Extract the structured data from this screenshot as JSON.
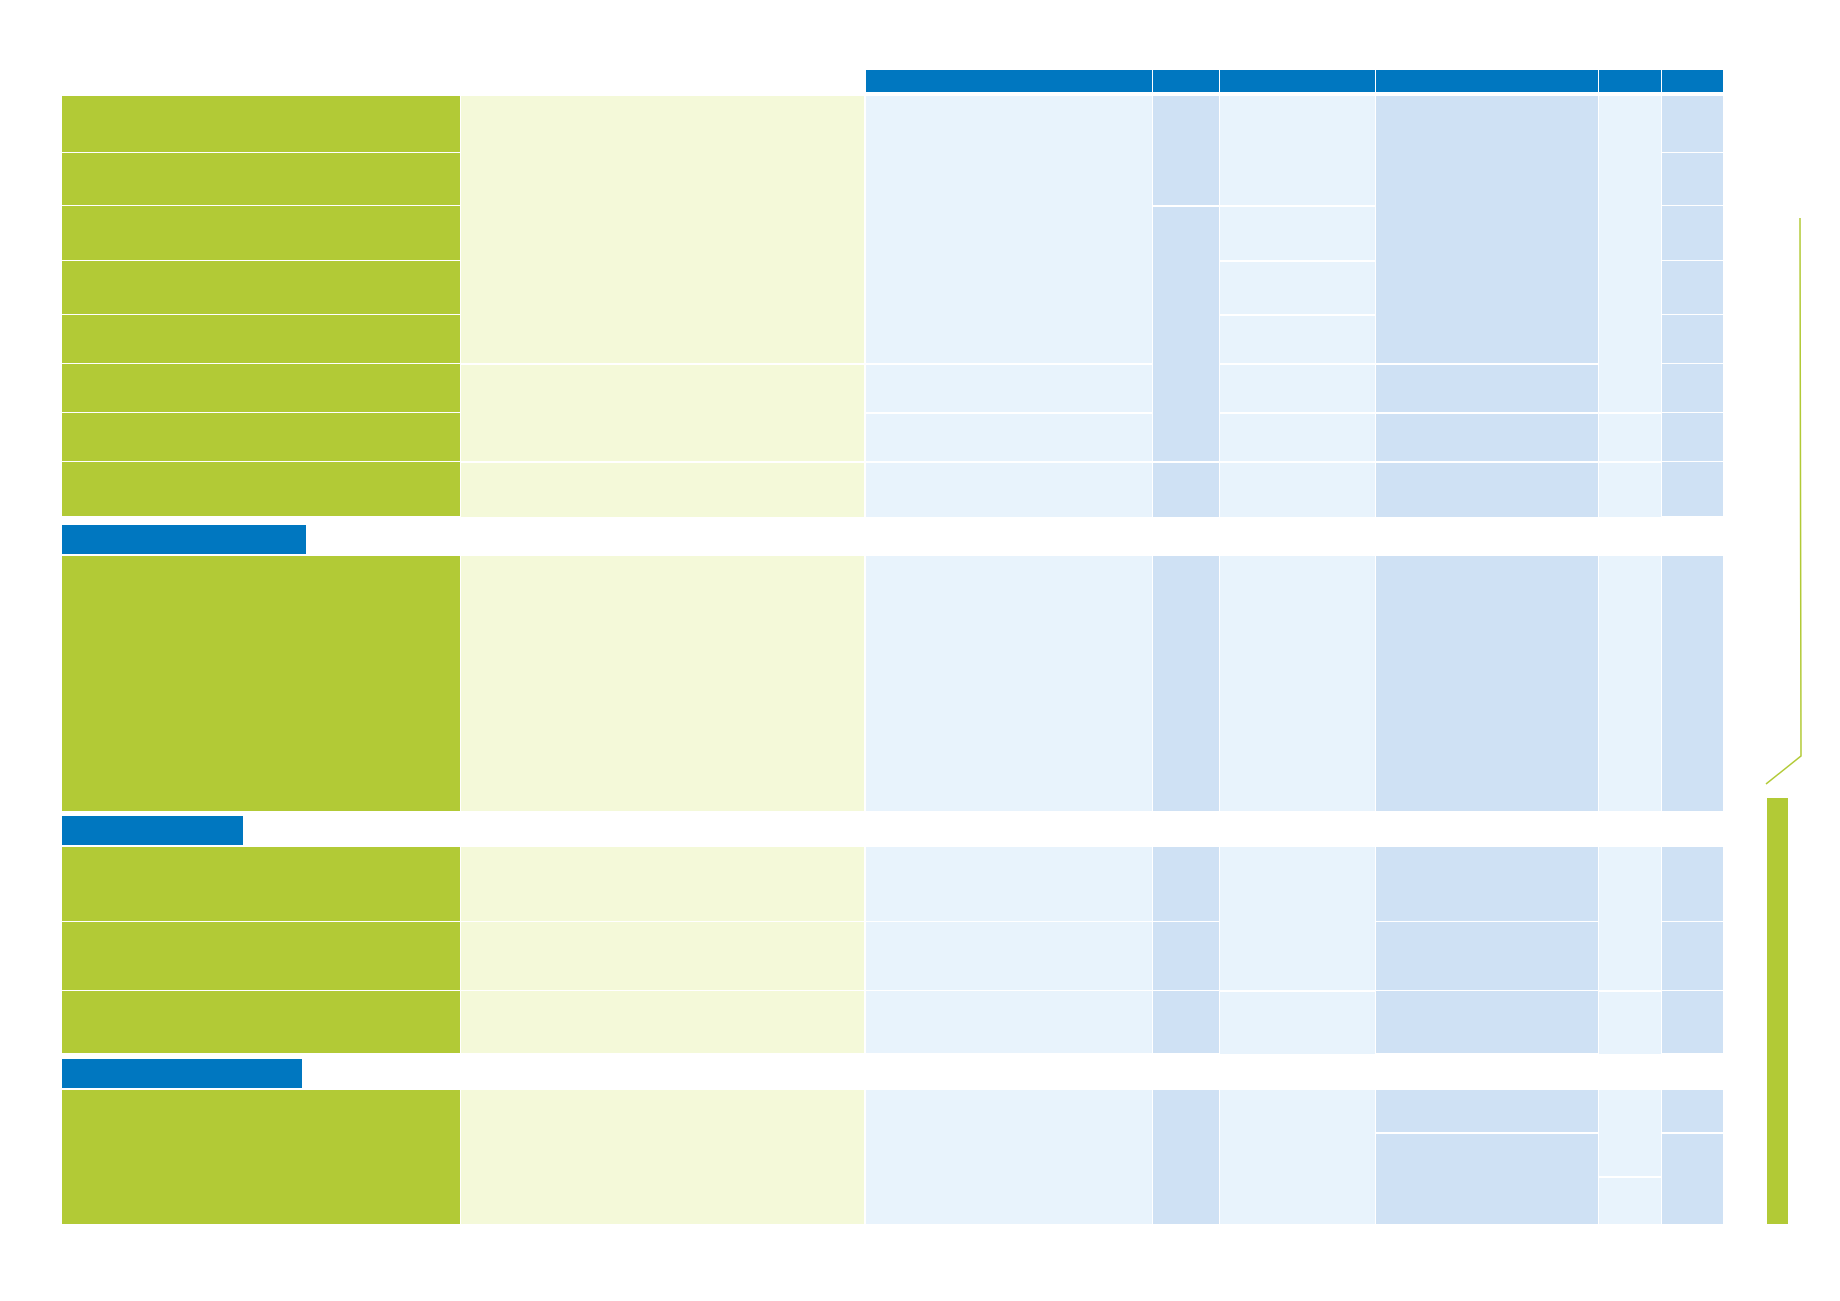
{
  "table": {
    "column_headers": [
      "",
      "",
      "",
      "",
      "",
      "",
      "",
      ""
    ],
    "sections": [
      {
        "title": "",
        "rows": 8
      },
      {
        "title": "",
        "rows": 1
      },
      {
        "title": "",
        "rows": 3
      },
      {
        "title": "",
        "rows": 1
      }
    ]
  },
  "colors": {
    "header_blue": "#0077c0",
    "row_label_green": "#b2ca36",
    "light_green": "#f4f9d9",
    "light_blue": "#e8f3fc",
    "medium_blue": "#cfe1f4",
    "side_bar_green": "#b2ca36"
  }
}
